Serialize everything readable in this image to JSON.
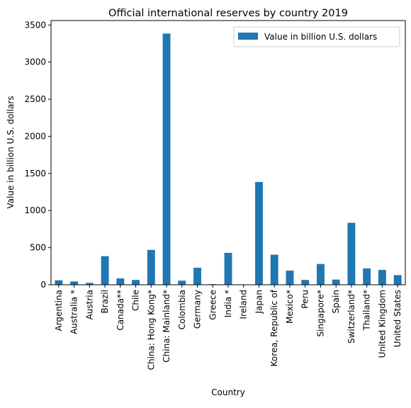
{
  "chart_data": {
    "type": "bar",
    "title": "Official international reserves by country 2019",
    "xlabel": "Country",
    "ylabel": "Value in billion U.S. dollars",
    "ylim": [
      0,
      3560
    ],
    "yticks": [
      0,
      500,
      1000,
      1500,
      2000,
      2500,
      3000,
      3500
    ],
    "grid": false,
    "legend_position": "top-right",
    "categories": [
      "Argentina",
      "Australia *",
      "Austria",
      "Brazil",
      "Canada**",
      "Chile",
      "China: Hong Kong*",
      "China: Mainland*",
      "Colombia",
      "Germany",
      "Greece",
      "India *",
      "Ireland",
      "Japan",
      "Korea, Republic of",
      "Mexico*",
      "Peru",
      "Singapore*",
      "Spain",
      "Switzerland*",
      "Thailand*",
      "United Kingdom",
      "United States"
    ],
    "series": [
      {
        "name": "Value in billion U.S. dollars",
        "color": "#1f77b4",
        "values": [
          60,
          45,
          25,
          385,
          85,
          65,
          470,
          3385,
          55,
          230,
          8,
          430,
          5,
          1385,
          405,
          190,
          65,
          280,
          70,
          835,
          220,
          200,
          130
        ]
      }
    ]
  }
}
